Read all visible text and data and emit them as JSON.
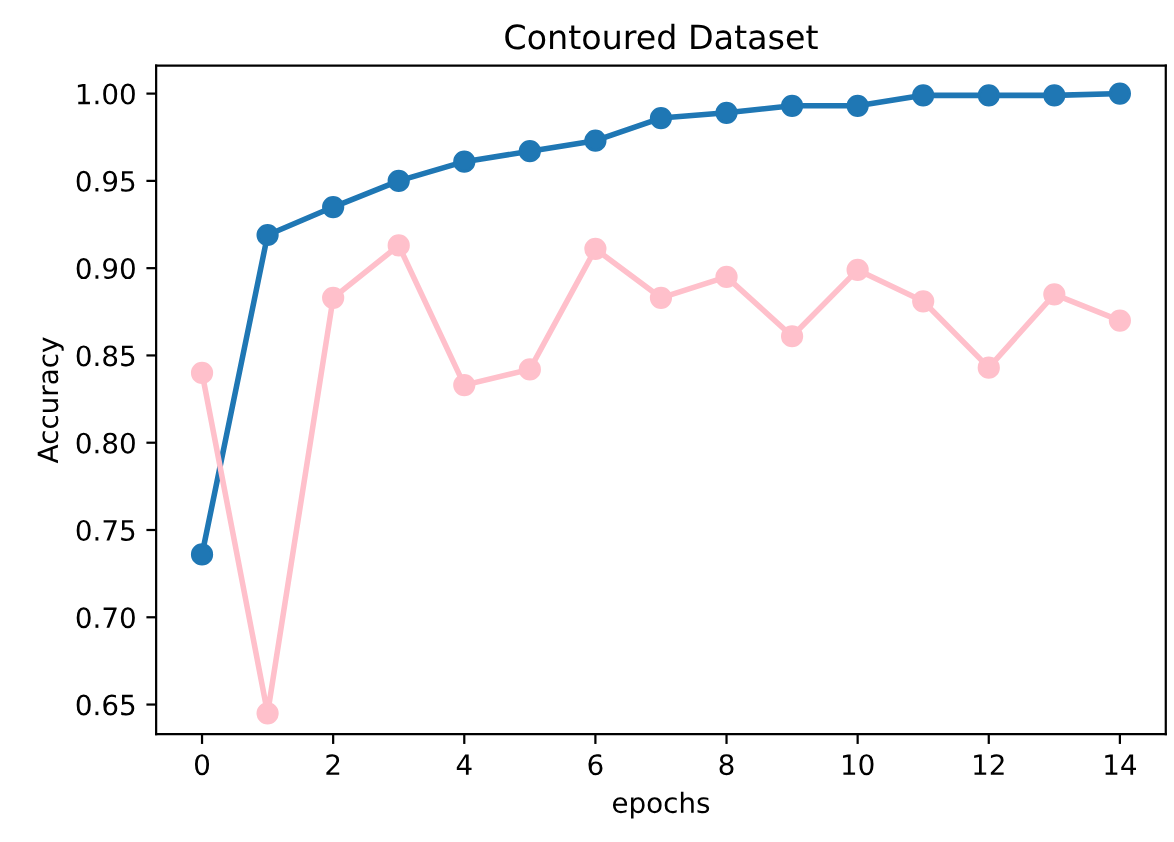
{
  "chart_data": {
    "type": "line",
    "title": "Contoured Dataset",
    "xlabel": "epochs",
    "ylabel": "Accuracy",
    "x": [
      0,
      1,
      2,
      3,
      4,
      5,
      6,
      7,
      8,
      9,
      10,
      11,
      12,
      13,
      14
    ],
    "series": [
      {
        "color": "#1f77b4",
        "values": [
          0.736,
          0.919,
          0.935,
          0.95,
          0.961,
          0.967,
          0.973,
          0.986,
          0.989,
          0.993,
          0.993,
          0.999,
          0.999,
          0.999,
          1.0
        ]
      },
      {
        "color": "#ffc0cb",
        "values": [
          0.84,
          0.645,
          0.883,
          0.913,
          0.833,
          0.842,
          0.911,
          0.883,
          0.895,
          0.861,
          0.899,
          0.881,
          0.843,
          0.885,
          0.87
        ]
      }
    ],
    "xlim": [
      -0.7,
      14.7
    ],
    "ylim": [
      0.633,
      1.016
    ],
    "xticks": [
      0,
      2,
      4,
      6,
      8,
      10,
      12,
      14
    ],
    "yticks": [
      {
        "value": 0.65,
        "label": "0.65"
      },
      {
        "value": 0.7,
        "label": "0.70"
      },
      {
        "value": 0.75,
        "label": "0.75"
      },
      {
        "value": 0.8,
        "label": "0.80"
      },
      {
        "value": 0.85,
        "label": "0.85"
      },
      {
        "value": 0.9,
        "label": "0.90"
      },
      {
        "value": 0.95,
        "label": "0.95"
      },
      {
        "value": 1.0,
        "label": "1.00"
      }
    ],
    "marker": "circle",
    "line_style": "solid",
    "grid": false,
    "legend": false
  }
}
